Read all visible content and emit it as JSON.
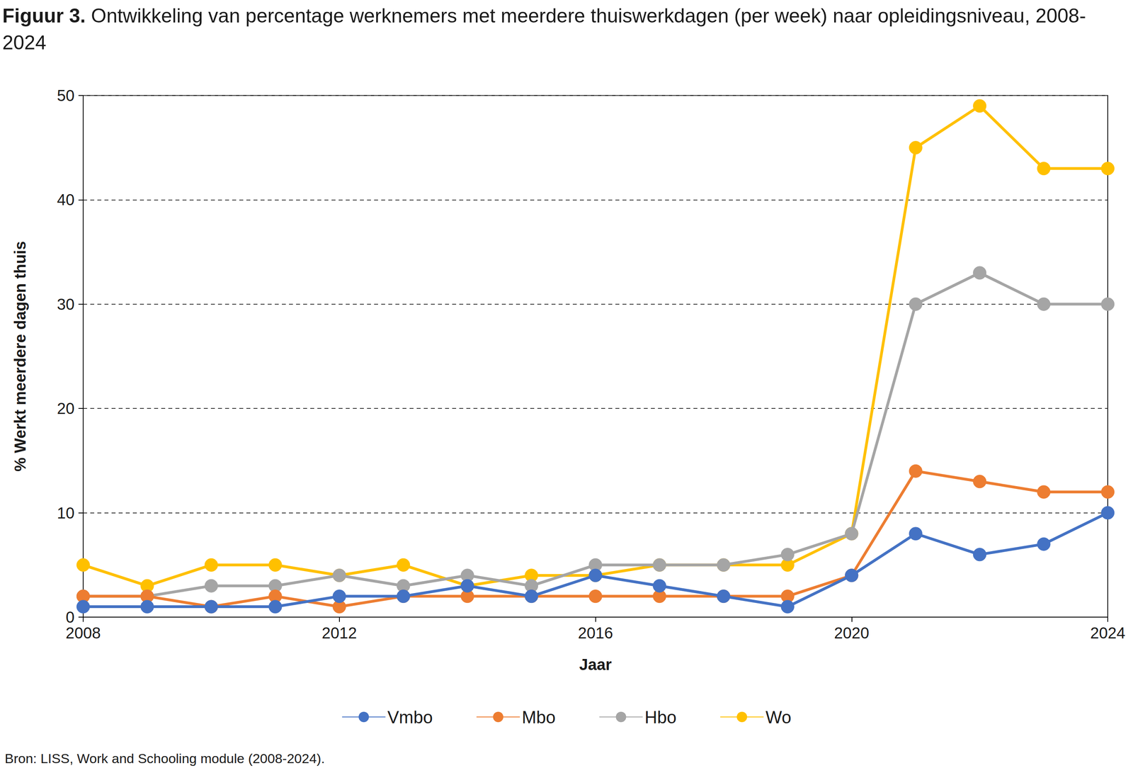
{
  "chart_data": {
    "type": "line",
    "title": "Figuur 3. Ontwikkeling van percentage werknemers met meerdere thuiswerkdagen (per week) naar opleidingsniveau, 2008-2024",
    "x_label": "Jaar",
    "y_label": "% Werkt meerdere dagen thuis",
    "annotations": [
      "Bron: LISS, Work and Schooling module (2008-2024)."
    ],
    "x": [
      2008,
      2009,
      2010,
      2011,
      2012,
      2013,
      2014,
      2015,
      2016,
      2017,
      2018,
      2019,
      2020,
      2021,
      2022,
      2023,
      2024
    ],
    "series": [
      {
        "name": "Vmbo",
        "color": "#4472c4",
        "values": [
          1,
          1,
          1,
          1,
          2,
          2,
          3,
          2,
          4,
          3,
          2,
          1,
          4,
          8,
          6,
          7,
          10
        ]
      },
      {
        "name": "Mbo",
        "color": "#ed7d31",
        "values": [
          2,
          2,
          1,
          2,
          1,
          2,
          2,
          2,
          2,
          2,
          2,
          2,
          4,
          14,
          13,
          12,
          12
        ]
      },
      {
        "name": "Hbo",
        "color": "#a5a5a5",
        "values": [
          2,
          2,
          3,
          3,
          4,
          3,
          4,
          3,
          5,
          5,
          5,
          6,
          8,
          30,
          33,
          30,
          30
        ]
      },
      {
        "name": "Wo",
        "color": "#ffc000",
        "values": [
          5,
          3,
          5,
          5,
          4,
          5,
          3,
          4,
          4,
          5,
          5,
          5,
          8,
          45,
          49,
          43,
          43
        ]
      }
    ],
    "xlim": [
      2008,
      2024
    ],
    "xticks": [
      2008,
      2012,
      2016,
      2020,
      2024
    ],
    "ylim": [
      0,
      50
    ],
    "yticks": [
      0,
      10,
      20,
      30,
      40,
      50
    ],
    "grid": true,
    "legend": "bottom",
    "marker": "circle"
  }
}
